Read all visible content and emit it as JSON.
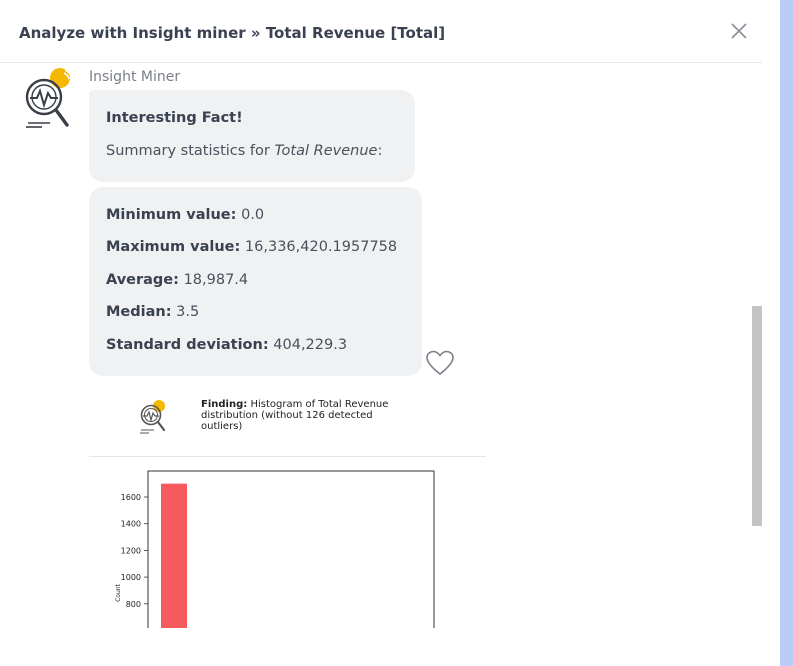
{
  "header": {
    "title": "Analyze with Insight miner » Total Revenue [Total]"
  },
  "message": {
    "sender": "Insight Miner",
    "fact_heading": "Interesting Fact!",
    "fact_prefix": "Summary statistics for ",
    "fact_subject": "Total Revenue",
    "fact_suffix": ":"
  },
  "stats": [
    {
      "label": "Minimum value",
      "value": "0.0"
    },
    {
      "label": "Maximum value",
      "value": "16,336,420.1957758"
    },
    {
      "label": "Average",
      "value": "18,987.4"
    },
    {
      "label": "Median",
      "value": "3.5"
    },
    {
      "label": "Standard deviation",
      "value": "404,229.3"
    }
  ],
  "finding": {
    "label": "Finding",
    "text": "Histogram of Total Revenue distribution (without 126 detected outliers)"
  },
  "chart_data": {
    "type": "bar",
    "title": "",
    "xlabel": "",
    "ylabel": "Count",
    "yticks": [
      800,
      1000,
      1200,
      1400,
      1600
    ],
    "ylim_visible": [
      680,
      1780
    ],
    "bars": [
      {
        "value": 1700,
        "color": "#f55a5e"
      }
    ]
  },
  "colors": {
    "accent": "#f5b800",
    "bar": "#f55a5e",
    "bubble": "#f0f1f3"
  },
  "icons": {
    "close": "close-icon",
    "heart": "heart-icon",
    "avatar": "insight-miner-magnifier-icon"
  }
}
